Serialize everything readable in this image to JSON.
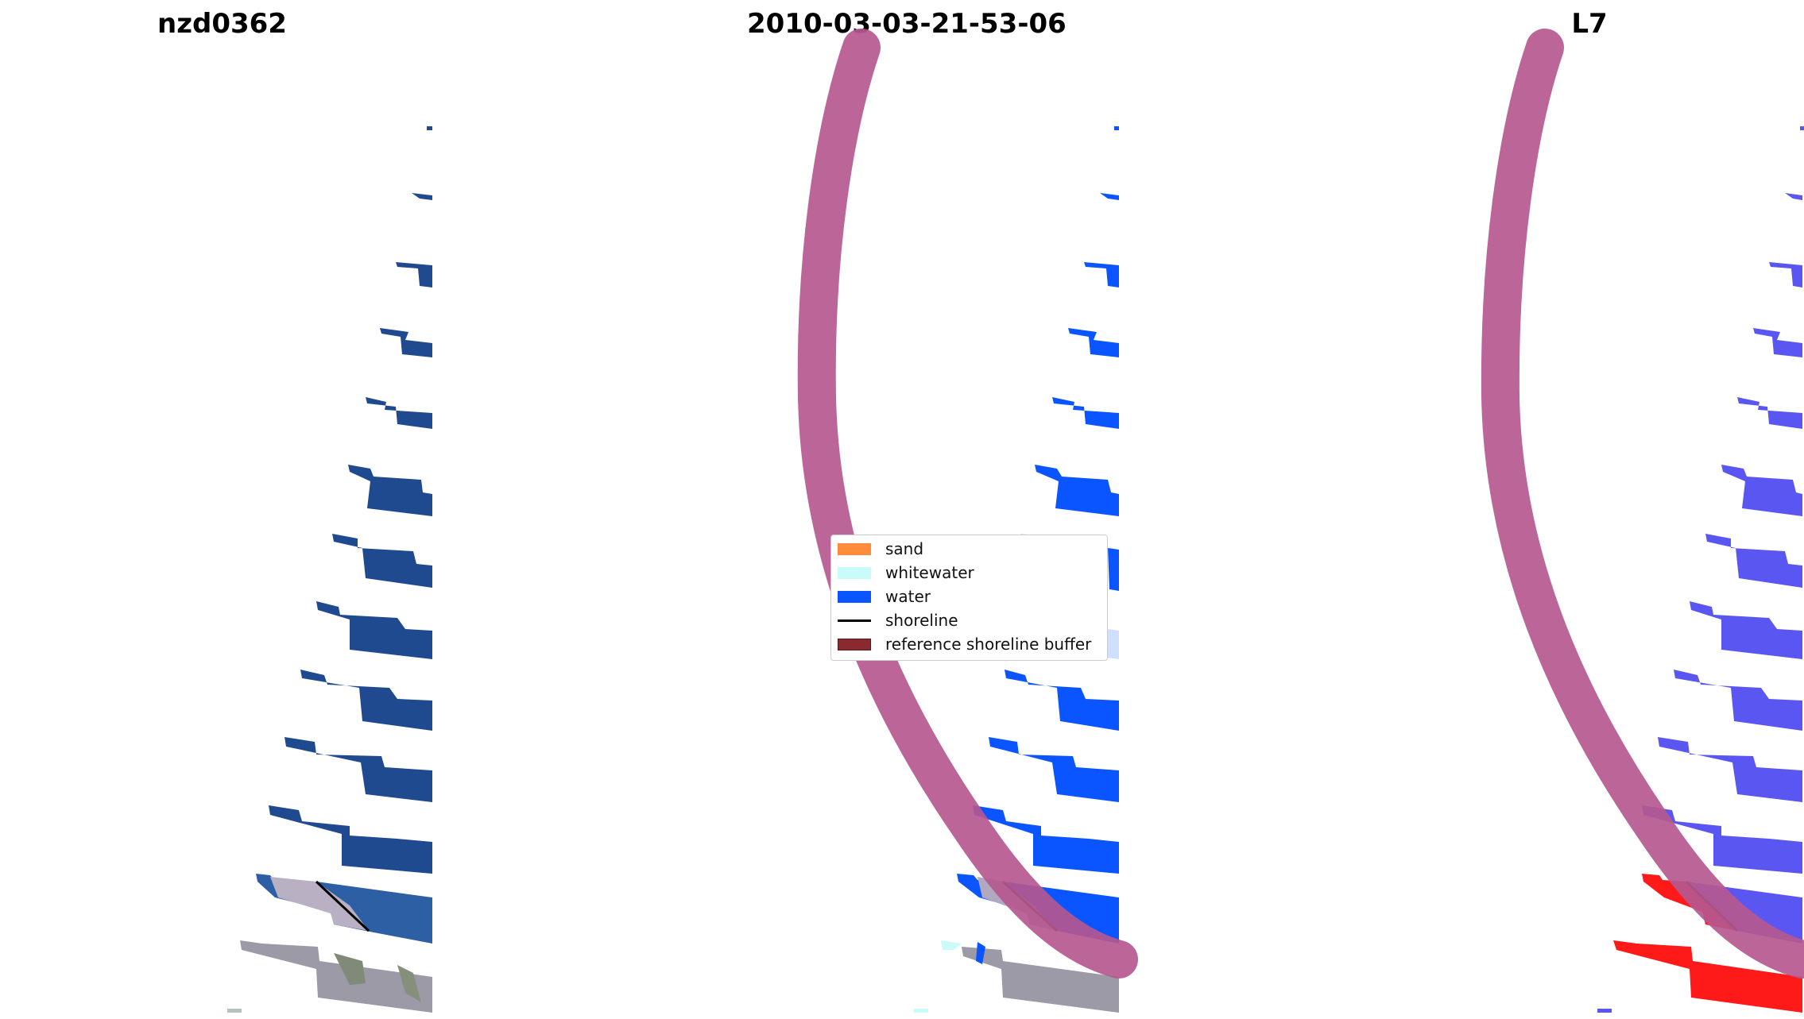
{
  "panels": [
    {
      "title": "nzd0362"
    },
    {
      "title": "2010-03-03-21-53-06"
    },
    {
      "title": "L7"
    }
  ],
  "legend": {
    "items": [
      {
        "label": "sand",
        "color": "#ff8c3a",
        "kind": "patch"
      },
      {
        "label": "whitewater",
        "color": "#c9fbfb",
        "kind": "patch"
      },
      {
        "label": "water",
        "color": "#0a55ff",
        "kind": "patch"
      },
      {
        "label": "shoreline",
        "color": "#000000",
        "kind": "line"
      },
      {
        "label": "reference shoreline buffer",
        "color": "#8b2a2e",
        "kind": "patch"
      }
    ]
  },
  "colors": {
    "rgb_water": "#1f4a8f",
    "class_water": "#0a55ff",
    "class_whitewater": "#cfe0ff",
    "buffer": "#b5588f",
    "l7_water": "#5a56f2",
    "l7_sand": "#ff1a1a",
    "land": "#9c9aa6"
  }
}
